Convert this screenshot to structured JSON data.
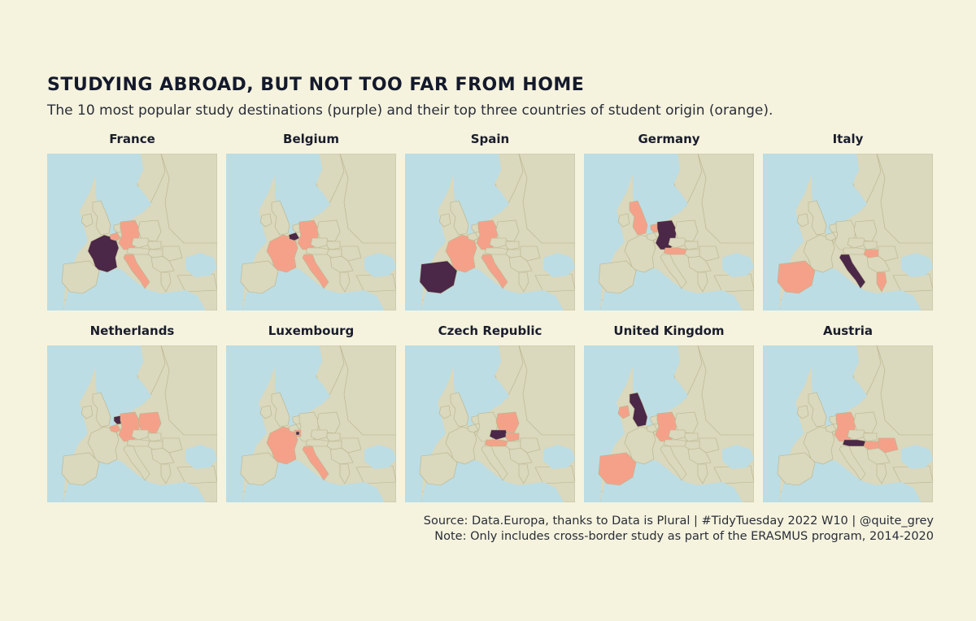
{
  "title": "STUDYING ABROAD, BUT NOT TOO FAR FROM HOME",
  "subtitle": "The 10 most popular study destinations (purple) and their top three countries of student origin (orange).",
  "colors": {
    "background": "#f5f3de",
    "sea": "#bcdde4",
    "land": "#dad8bd",
    "border": "#b9b48c",
    "destination": "#4b2748",
    "origin": "#f5a18a"
  },
  "panels": [
    {
      "name": "France",
      "destination": "france",
      "origins": [
        "germany",
        "italy",
        "belgium"
      ]
    },
    {
      "name": "Belgium",
      "destination": "belgium",
      "origins": [
        "france",
        "germany",
        "italy"
      ]
    },
    {
      "name": "Spain",
      "destination": "spain",
      "origins": [
        "germany",
        "italy",
        "france"
      ]
    },
    {
      "name": "Germany",
      "destination": "germany",
      "origins": [
        "uk",
        "austria",
        "netherlands"
      ]
    },
    {
      "name": "Italy",
      "destination": "italy",
      "origins": [
        "spain",
        "greece",
        "hungary"
      ]
    },
    {
      "name": "Netherlands",
      "destination": "netherlands",
      "origins": [
        "germany",
        "poland",
        "belgium"
      ]
    },
    {
      "name": "Luxembourg",
      "destination": "luxembourg",
      "origins": [
        "france",
        "italy",
        "luxembourg_hl"
      ]
    },
    {
      "name": "Czech Republic",
      "destination": "czechia",
      "origins": [
        "poland",
        "slovakia",
        "austria"
      ]
    },
    {
      "name": "United Kingdom",
      "destination": "uk",
      "origins": [
        "ireland",
        "germany",
        "spain"
      ]
    },
    {
      "name": "Austria",
      "destination": "austria",
      "origins": [
        "germany",
        "hungary",
        "romania"
      ]
    }
  ],
  "footer": {
    "line1": "Source:  Data.Europa, thanks to Data is Plural  |  #TidyTuesday 2022 W10  |  @quite_grey",
    "line2": "Note: Only includes cross-border study as part of the ERASMUS program, 2014-2020"
  }
}
